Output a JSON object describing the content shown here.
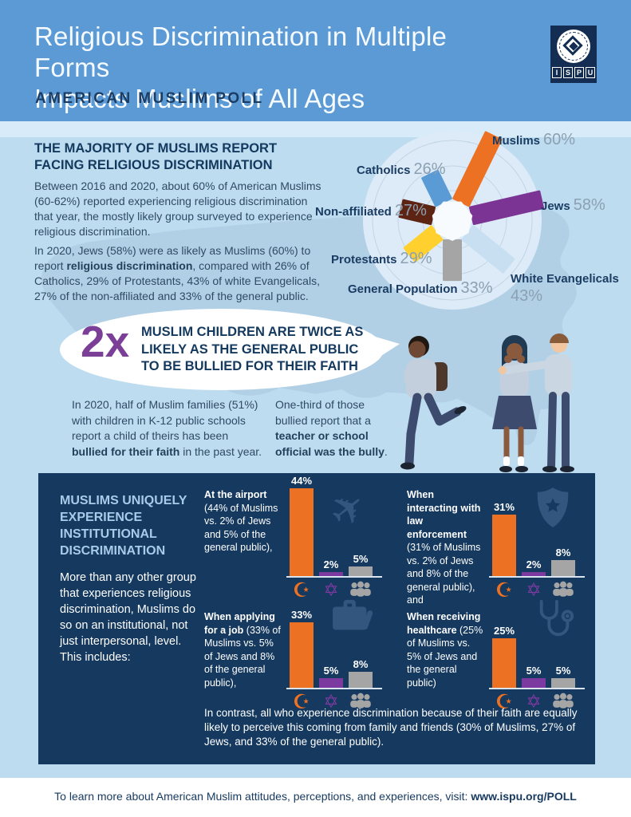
{
  "palette": {
    "header_blue": "#5B9AD5",
    "pale_strip": "#D7EBF8",
    "content_bg": "#BDDCF0",
    "panel_navy": "#15395F",
    "navy_text": "#16395F",
    "body_text": "#2E4A64",
    "orange": "#ED7123",
    "purple": "#7C3AA0",
    "gray": "#A5A5A5",
    "yellow": "#FFD02E",
    "brown": "#5E2413",
    "catholic_blue": "#5B9BD5",
    "pale_blue_bar": "#C7DFF0",
    "heading_light_blue": "#A9CBEA"
  },
  "header": {
    "title": "Religious Discrimination in Multiple Forms\nImpacts Muslims of All Ages",
    "subtitle": "AMERICAN MUSLIM POLL",
    "logo_letters": [
      "I",
      "S",
      "P",
      "U"
    ]
  },
  "majority": {
    "heading": "THE MAJORITY OF MUSLIMS REPORT\nFACING RELIGIOUS DISCRIMINATION",
    "p1": "Between 2016 and 2020, about 60% of American Muslims (60-62%) reported experiencing religious discrimination that year, the mostly likely group surveyed to experience religious discrimination.",
    "p2_segments": [
      {
        "t": "In 2020, Jews (58%) were as likely as Muslims (60%) to report ",
        "b": false
      },
      {
        "t": "religious discrimination",
        "b": true
      },
      {
        "t": ", compared with 26% of Catholics, 29% of Protestants, 43% of white Evangelicals, 27% of the non-affiliated and 33% of the general public.",
        "b": false
      }
    ]
  },
  "bubble": {
    "multiplier": "2x",
    "text": "MUSLIM CHILDREN ARE TWICE AS\nLIKELY AS THE GENERAL PUBLIC\nTO BE BULLIED FOR THEIR FAITH"
  },
  "bullying": {
    "left_segments": [
      {
        "t": "In 2020, half of Muslim families (51%) with children in K-12 public schools report a child of theirs has been ",
        "b": false
      },
      {
        "t": "bullied for their faith",
        "b": true
      },
      {
        "t": " in the past year.",
        "b": false
      }
    ],
    "right_segments": [
      {
        "t": "One-third of those bullied report that a ",
        "b": false
      },
      {
        "t": "teacher or school official was the bully",
        "b": true
      },
      {
        "t": ".",
        "b": false
      }
    ]
  },
  "institutional": {
    "heading": "MUSLIMS UNIQUELY\nEXPERIENCE\nINSTITUTIONAL\nDISCRIMINATION",
    "body": "More than any other group that experiences religious discrimination, Muslims do so on an institutional, not just interpersonal, level. This includes:",
    "contrast": "In contrast, all who experience discrimination because of their faith are equally likely to perceive this coming from family and friends (30% of Muslims, 27% of Jews, and 33% of the general public)."
  },
  "footer": {
    "prefix": "To learn more about American Muslim attitudes, perceptions, and experiences, visit: ",
    "link": "www.ispu.org/POLL"
  },
  "chart_data": [
    {
      "type": "radial_bar",
      "unit": "%",
      "series": [
        {
          "label": "Muslims",
          "value": 60,
          "display": "60%",
          "color": "#ED7123",
          "angle_deg": 26
        },
        {
          "label": "Jews",
          "value": 58,
          "display": "58%",
          "color": "#7B3394",
          "angle_deg": 77
        },
        {
          "label": "White Evangelicals",
          "value": 43,
          "display": "43%",
          "color": "#C7DFF0",
          "angle_deg": 129
        },
        {
          "label": "General Population",
          "value": 33,
          "display": "33%",
          "color": "#A5A5A5",
          "angle_deg": 180
        },
        {
          "label": "Protestants",
          "value": 29,
          "display": "29%",
          "color": "#FFD02E",
          "angle_deg": 231
        },
        {
          "label": "Non-affiliated",
          "value": 27,
          "display": "27%",
          "color": "#5E2413",
          "angle_deg": 283
        },
        {
          "label": "Catholics",
          "value": 26,
          "display": "26%",
          "color": "#5B9BD5",
          "angle_deg": 334
        }
      ]
    },
    {
      "type": "bar",
      "key": "airport",
      "title": "At the airport",
      "text_segments": [
        {
          "t": "At the airport\n",
          "b": true
        },
        {
          "t": "(44% of Muslims vs. 2% of Jews and 5% of the general public),",
          "b": false
        }
      ],
      "categories": [
        "Muslims",
        "Jews",
        "General public"
      ],
      "values": [
        44,
        2,
        5
      ],
      "value_labels": [
        "44%",
        "2%",
        "5%"
      ],
      "colors": [
        "#ED7123",
        "#7C3AA0",
        "#A5A5A5"
      ],
      "bg_icon": "airplane-icon",
      "category_icons": [
        "crescent-star-icon",
        "star-of-david-icon",
        "people-group-icon"
      ]
    },
    {
      "type": "bar",
      "key": "law-enforcement",
      "title": "When interacting with law enforcement",
      "text_segments": [
        {
          "t": "When interacting with law enforcement\n",
          "b": true
        },
        {
          "t": "(31% of Muslims vs. 2% of Jews and 8% of the general public), and",
          "b": false
        }
      ],
      "categories": [
        "Muslims",
        "Jews",
        "General public"
      ],
      "values": [
        31,
        2,
        8
      ],
      "value_labels": [
        "31%",
        "2%",
        "8%"
      ],
      "colors": [
        "#ED7123",
        "#7C3AA0",
        "#A5A5A5"
      ],
      "bg_icon": "police-badge-icon",
      "category_icons": [
        "crescent-star-icon",
        "star-of-david-icon",
        "people-group-icon"
      ]
    },
    {
      "type": "bar",
      "key": "job",
      "title": "When applying for a job",
      "text_segments": [
        {
          "t": "When applying for a job ",
          "b": true
        },
        {
          "t": "(33% of Muslims vs. 5% of Jews and 8% of the general public),",
          "b": false
        }
      ],
      "categories": [
        "Muslims",
        "Jews",
        "General public"
      ],
      "values": [
        33,
        5,
        8
      ],
      "value_labels": [
        "33%",
        "5%",
        "8%"
      ],
      "colors": [
        "#ED7123",
        "#7C3AA0",
        "#A5A5A5"
      ],
      "bg_icon": "briefcase-icon",
      "category_icons": [
        "crescent-star-icon",
        "star-of-david-icon",
        "people-group-icon"
      ]
    },
    {
      "type": "bar",
      "key": "healthcare",
      "title": "When receiving healthcare",
      "text_segments": [
        {
          "t": "When receiving healthcare ",
          "b": true
        },
        {
          "t": "(25% of Muslims vs. 5% of Jews and the general public)",
          "b": false
        }
      ],
      "categories": [
        "Muslims",
        "Jews",
        "General public"
      ],
      "values": [
        25,
        5,
        5
      ],
      "value_labels": [
        "25%",
        "5%",
        "5%"
      ],
      "colors": [
        "#ED7123",
        "#7C3AA0",
        "#A5A5A5"
      ],
      "bg_icon": "stethoscope-icon",
      "category_icons": [
        "crescent-star-icon",
        "star-of-david-icon",
        "people-group-icon"
      ]
    }
  ]
}
